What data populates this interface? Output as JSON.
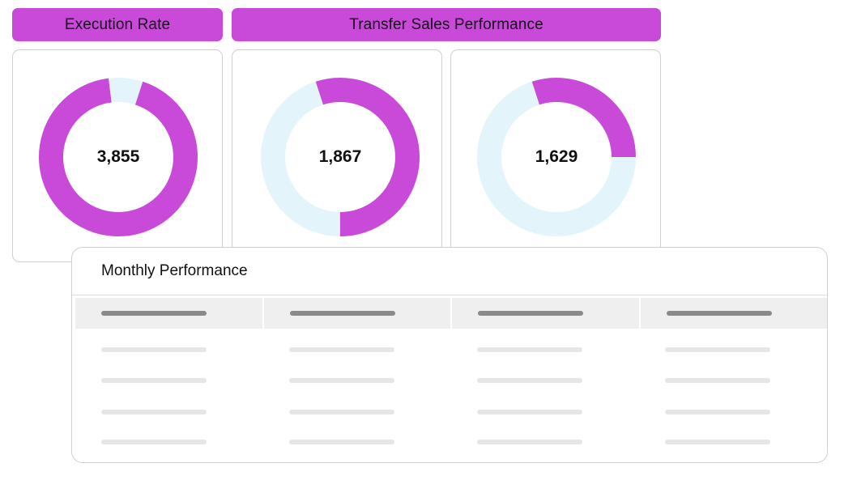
{
  "headers": {
    "execution_rate": "Execution Rate",
    "transfer_sales": "Transfer Sales Performance"
  },
  "donuts": [
    {
      "value_label": "3,855",
      "filled_fraction": 0.93,
      "start_fraction": 0.05
    },
    {
      "value_label": "1,867",
      "filled_fraction": 0.55,
      "start_fraction": 0.95
    },
    {
      "value_label": "1,629",
      "filled_fraction": 0.3,
      "start_fraction": 0.95
    }
  ],
  "colors": {
    "accent": "#c94ad8",
    "track": "#e4f4fb",
    "header_bar": "#8a8a8a",
    "row_bar": "#e6e6e6"
  },
  "table": {
    "title": "Monthly Performance",
    "column_count": 4,
    "row_count": 4
  }
}
